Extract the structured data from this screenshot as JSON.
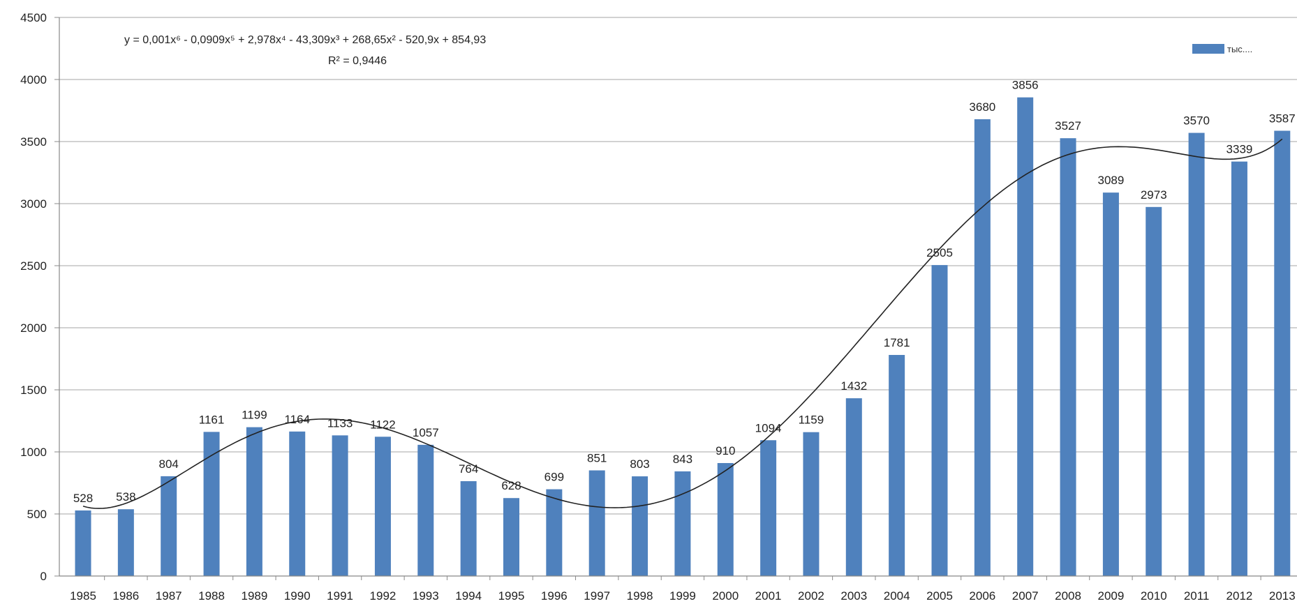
{
  "chart_data": {
    "type": "bar",
    "categories": [
      "1985",
      "1986",
      "1987",
      "1988",
      "1989",
      "1990",
      "1991",
      "1992",
      "1993",
      "1994",
      "1995",
      "1996",
      "1997",
      "1998",
      "1999",
      "2000",
      "2001",
      "2002",
      "2003",
      "2004",
      "2005",
      "2006",
      "2007",
      "2008",
      "2009",
      "2010",
      "2011",
      "2012",
      "2013"
    ],
    "series": [
      {
        "name": "тыс....",
        "values": [
          528,
          538,
          804,
          1161,
          1199,
          1164,
          1133,
          1122,
          1057,
          764,
          628,
          699,
          851,
          803,
          843,
          910,
          1094,
          1159,
          1432,
          1781,
          2505,
          3680,
          3856,
          3527,
          3089,
          2973,
          3570,
          3339,
          3587
        ]
      }
    ],
    "y_ticks": [
      "0",
      "500",
      "1000",
      "1500",
      "2000",
      "2500",
      "3000",
      "3500",
      "4000",
      "4500"
    ],
    "ylim": [
      0,
      4500
    ],
    "grid": true,
    "legend_position": "top-right",
    "trendline": {
      "type": "polynomial",
      "equation": "y = 0,001x⁶ - 0,0909x⁵ + 2,978x⁴ - 43,309x³ + 268,65x² - 520,9x + 854,93",
      "r_squared": "R² = 0,9446"
    },
    "colors": {
      "bar": "#4f81bd",
      "grid": "#b8b8b8",
      "trend": "#222222",
      "axis": "#888888"
    }
  }
}
